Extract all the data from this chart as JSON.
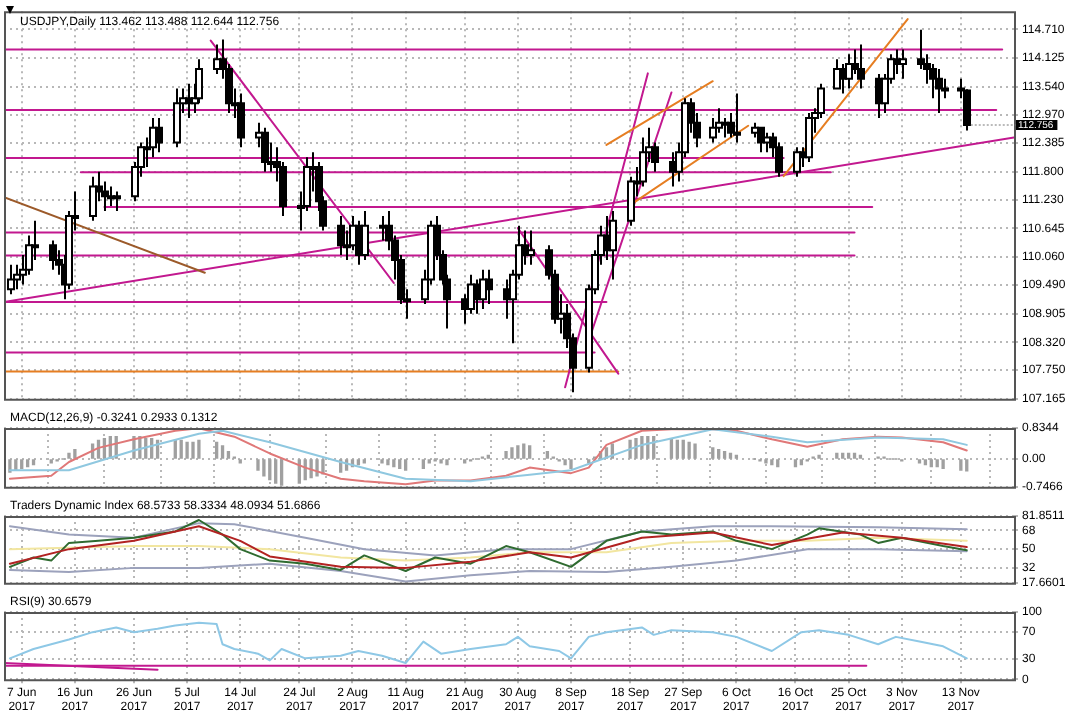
{
  "chart_data": [
    {
      "type": "candlestick",
      "title": "USDJPY,Daily 113.462 113.488 112.644 112.756",
      "x": [
        "2017-06-05",
        "2017-06-06",
        "2017-06-07",
        "2017-06-08",
        "2017-06-09",
        "2017-06-12",
        "2017-06-13",
        "2017-06-14",
        "2017-06-15",
        "2017-06-16",
        "2017-06-19",
        "2017-06-20",
        "2017-06-21",
        "2017-06-22",
        "2017-06-23",
        "2017-06-26",
        "2017-06-27",
        "2017-06-28",
        "2017-06-29",
        "2017-06-30",
        "2017-07-03",
        "2017-07-04",
        "2017-07-05",
        "2017-07-06",
        "2017-07-07",
        "2017-07-10",
        "2017-07-11",
        "2017-07-12",
        "2017-07-13",
        "2017-07-14",
        "2017-07-17",
        "2017-07-18",
        "2017-07-19",
        "2017-07-20",
        "2017-07-21",
        "2017-07-24",
        "2017-07-25",
        "2017-07-26",
        "2017-07-27",
        "2017-07-28",
        "2017-07-31",
        "2017-08-01",
        "2017-08-02",
        "2017-08-03",
        "2017-08-04",
        "2017-08-07",
        "2017-08-08",
        "2017-08-09",
        "2017-08-10",
        "2017-08-11",
        "2017-08-14",
        "2017-08-15",
        "2017-08-16",
        "2017-08-17",
        "2017-08-18",
        "2017-08-21",
        "2017-08-22",
        "2017-08-23",
        "2017-08-24",
        "2017-08-25",
        "2017-08-28",
        "2017-08-29",
        "2017-08-30",
        "2017-08-31",
        "2017-09-01",
        "2017-09-04",
        "2017-09-05",
        "2017-09-06",
        "2017-09-07",
        "2017-09-08",
        "2017-09-11",
        "2017-09-12",
        "2017-09-13",
        "2017-09-14",
        "2017-09-15",
        "2017-09-18",
        "2017-09-19",
        "2017-09-20",
        "2017-09-21",
        "2017-09-22",
        "2017-09-25",
        "2017-09-26",
        "2017-09-27",
        "2017-09-28",
        "2017-09-29",
        "2017-10-02",
        "2017-10-03",
        "2017-10-04",
        "2017-10-05",
        "2017-10-06",
        "2017-10-09",
        "2017-10-10",
        "2017-10-11",
        "2017-10-12",
        "2017-10-13",
        "2017-10-16",
        "2017-10-17",
        "2017-10-18",
        "2017-10-19",
        "2017-10-20",
        "2017-10-23",
        "2017-10-24",
        "2017-10-25",
        "2017-10-26",
        "2017-10-27",
        "2017-10-30",
        "2017-10-31",
        "2017-11-01",
        "2017-11-02",
        "2017-11-03",
        "2017-11-06",
        "2017-11-07",
        "2017-11-08",
        "2017-11-09",
        "2017-11-10",
        "2017-11-13",
        "2017-11-14"
      ],
      "ohlc": [
        [
          109.4,
          109.9,
          109.3,
          109.6
        ],
        [
          109.6,
          109.9,
          109.4,
          109.7
        ],
        [
          109.7,
          110.1,
          109.5,
          109.8
        ],
        [
          109.8,
          110.5,
          109.7,
          110.3
        ],
        [
          110.3,
          110.8,
          110.0,
          110.3
        ],
        [
          110.3,
          110.4,
          109.8,
          110.0
        ],
        [
          110.0,
          110.2,
          109.7,
          109.9
        ],
        [
          109.9,
          110.1,
          109.2,
          109.5
        ],
        [
          109.5,
          111.0,
          109.4,
          110.9
        ],
        [
          110.9,
          111.4,
          110.6,
          110.9
        ],
        [
          110.9,
          111.7,
          110.8,
          111.5
        ],
        [
          111.5,
          111.8,
          111.2,
          111.4
        ],
        [
          111.4,
          111.6,
          111.0,
          111.3
        ],
        [
          111.3,
          111.5,
          111.1,
          111.3
        ],
        [
          111.3,
          111.4,
          111.0,
          111.3
        ],
        [
          111.3,
          112.0,
          111.2,
          111.9
        ],
        [
          111.9,
          112.4,
          111.7,
          112.3
        ],
        [
          112.3,
          112.5,
          111.9,
          112.3
        ],
        [
          112.3,
          112.9,
          112.1,
          112.7
        ],
        [
          112.7,
          112.9,
          112.2,
          112.4
        ],
        [
          112.4,
          113.5,
          112.3,
          113.2
        ],
        [
          113.2,
          113.5,
          113.0,
          113.3
        ],
        [
          113.3,
          113.6,
          112.9,
          113.2
        ],
        [
          113.2,
          113.6,
          113.0,
          113.3
        ],
        [
          113.3,
          114.1,
          113.2,
          113.9
        ],
        [
          113.9,
          114.4,
          113.8,
          114.1
        ],
        [
          114.1,
          114.5,
          113.7,
          113.9
        ],
        [
          113.9,
          114.0,
          113.0,
          113.2
        ],
        [
          113.2,
          113.5,
          112.9,
          113.2
        ],
        [
          113.2,
          113.4,
          112.3,
          112.5
        ],
        [
          112.5,
          112.8,
          112.3,
          112.6
        ],
        [
          112.6,
          112.7,
          111.8,
          112.0
        ],
        [
          112.0,
          112.4,
          111.8,
          112.0
        ],
        [
          112.0,
          112.3,
          111.6,
          111.9
        ],
        [
          111.9,
          112.0,
          110.9,
          111.1
        ],
        [
          111.1,
          111.4,
          110.6,
          111.1
        ],
        [
          111.1,
          112.1,
          111.0,
          111.9
        ],
        [
          111.9,
          112.2,
          111.4,
          111.9
        ],
        [
          111.9,
          112.0,
          111.0,
          111.2
        ],
        [
          111.2,
          111.3,
          110.6,
          110.7
        ],
        [
          110.7,
          110.9,
          110.1,
          110.3
        ],
        [
          110.3,
          110.6,
          110.0,
          110.3
        ],
        [
          110.3,
          110.9,
          110.2,
          110.7
        ],
        [
          110.7,
          110.8,
          109.9,
          110.1
        ],
        [
          110.1,
          111.0,
          110.0,
          110.7
        ],
        [
          110.7,
          110.9,
          110.4,
          110.7
        ],
        [
          110.7,
          111.0,
          110.2,
          110.4
        ],
        [
          110.4,
          110.5,
          109.6,
          110.0
        ],
        [
          110.0,
          110.1,
          109.1,
          109.2
        ],
        [
          109.2,
          109.4,
          108.8,
          109.2
        ],
        [
          109.2,
          109.8,
          109.1,
          109.6
        ],
        [
          109.6,
          110.8,
          109.5,
          110.7
        ],
        [
          110.7,
          110.9,
          110.0,
          110.1
        ],
        [
          110.1,
          110.2,
          109.5,
          109.6
        ],
        [
          109.6,
          109.7,
          108.6,
          109.2
        ],
        [
          109.2,
          109.3,
          108.7,
          109.0
        ],
        [
          109.0,
          109.7,
          108.9,
          109.5
        ],
        [
          109.5,
          109.6,
          108.9,
          109.2
        ],
        [
          109.2,
          109.8,
          109.0,
          109.6
        ],
        [
          109.6,
          109.8,
          109.1,
          109.4
        ],
        [
          109.4,
          109.6,
          108.8,
          109.2
        ],
        [
          109.2,
          109.8,
          108.3,
          109.7
        ],
        [
          109.7,
          110.7,
          109.6,
          110.3
        ],
        [
          110.3,
          110.6,
          109.9,
          110.1
        ],
        [
          110.1,
          110.6,
          109.9,
          110.2
        ],
        [
          110.2,
          110.3,
          109.6,
          109.7
        ],
        [
          109.7,
          109.8,
          108.7,
          108.8
        ],
        [
          108.8,
          109.3,
          108.5,
          108.9
        ],
        [
          108.9,
          109.1,
          108.2,
          108.4
        ],
        [
          108.4,
          108.5,
          107.3,
          107.8
        ],
        [
          107.8,
          109.5,
          107.7,
          109.4
        ],
        [
          109.4,
          110.2,
          109.3,
          110.1
        ],
        [
          110.1,
          110.7,
          109.9,
          110.5
        ],
        [
          110.5,
          110.9,
          110.0,
          110.2
        ],
        [
          110.2,
          111.0,
          109.6,
          110.8
        ],
        [
          110.8,
          111.7,
          110.7,
          111.6
        ],
        [
          111.6,
          111.9,
          111.3,
          111.6
        ],
        [
          111.6,
          112.5,
          111.5,
          112.2
        ],
        [
          112.2,
          112.7,
          112.0,
          112.3
        ],
        [
          112.3,
          112.4,
          111.8,
          112.0
        ],
        [
          112.0,
          112.2,
          111.5,
          111.8
        ],
        [
          111.8,
          112.4,
          111.6,
          112.2
        ],
        [
          112.2,
          113.3,
          112.1,
          113.2
        ],
        [
          113.2,
          113.3,
          112.6,
          112.8
        ],
        [
          112.8,
          113.0,
          112.3,
          112.5
        ],
        [
          112.5,
          112.9,
          112.4,
          112.7
        ],
        [
          112.7,
          113.1,
          112.6,
          112.8
        ],
        [
          112.8,
          112.9,
          112.5,
          112.8
        ],
        [
          112.8,
          113.0,
          112.5,
          112.6
        ],
        [
          112.6,
          113.4,
          112.4,
          112.6
        ],
        [
          112.6,
          112.8,
          112.5,
          112.7
        ],
        [
          112.7,
          112.7,
          112.2,
          112.4
        ],
        [
          112.4,
          112.6,
          112.2,
          112.5
        ],
        [
          112.5,
          112.6,
          112.1,
          112.3
        ],
        [
          112.3,
          112.4,
          111.7,
          111.8
        ],
        [
          111.8,
          112.3,
          111.7,
          112.2
        ],
        [
          112.2,
          112.3,
          111.9,
          112.1
        ],
        [
          112.1,
          113.0,
          112.0,
          112.9
        ],
        [
          112.9,
          113.1,
          112.6,
          113.0
        ],
        [
          113.0,
          113.6,
          112.9,
          113.5
        ],
        [
          113.5,
          114.1,
          113.5,
          113.9
        ],
        [
          113.9,
          114.0,
          113.4,
          113.7
        ],
        [
          113.7,
          114.2,
          113.5,
          114.0
        ],
        [
          114.0,
          114.3,
          113.8,
          113.9
        ],
        [
          113.9,
          114.4,
          113.5,
          113.7
        ],
        [
          113.7,
          113.8,
          112.9,
          113.2
        ],
        [
          113.2,
          113.8,
          113.0,
          113.7
        ],
        [
          113.7,
          114.2,
          113.6,
          114.1
        ],
        [
          114.1,
          114.3,
          113.8,
          114.0
        ],
        [
          114.0,
          114.3,
          113.7,
          114.1
        ],
        [
          114.1,
          114.7,
          113.9,
          114.0
        ],
        [
          114.0,
          114.2,
          113.6,
          113.9
        ],
        [
          113.9,
          114.0,
          113.3,
          113.7
        ],
        [
          113.7,
          113.9,
          113.0,
          113.5
        ],
        [
          113.5,
          113.7,
          113.3,
          113.5
        ],
        [
          113.5,
          113.7,
          113.3,
          113.46
        ],
        [
          113.462,
          113.488,
          112.644,
          112.756
        ]
      ],
      "series": [
        {
          "type": "line",
          "color": "#c2188f",
          "x": [
            "2017-06-04",
            "2017-11-20"
          ],
          "values": [
            114.3,
            114.3
          ]
        },
        {
          "type": "line",
          "color": "#c2188f",
          "x": [
            "2017-06-04",
            "2017-11-19"
          ],
          "values": [
            113.06,
            113.06
          ]
        },
        {
          "type": "line",
          "color": "#c2188f",
          "x": [
            "2017-06-04",
            "2017-10-14"
          ],
          "values": [
            112.08,
            112.08
          ]
        },
        {
          "type": "line",
          "color": "#c2188f",
          "x": [
            "2017-06-17",
            "2017-10-22"
          ],
          "values": [
            111.79,
            111.79
          ]
        },
        {
          "type": "line",
          "color": "#c2188f",
          "x": [
            "2017-06-21",
            "2017-10-29"
          ],
          "values": [
            111.08,
            111.08
          ]
        },
        {
          "type": "line",
          "color": "#c2188f",
          "x": [
            "2017-06-04",
            "2017-10-26"
          ],
          "values": [
            110.56,
            110.56
          ]
        },
        {
          "type": "line",
          "color": "#c2188f",
          "x": [
            "2017-06-04",
            "2017-10-26"
          ],
          "values": [
            110.09,
            110.09
          ]
        },
        {
          "type": "line",
          "color": "#c2188f",
          "x": [
            "2017-06-04",
            "2017-09-14"
          ],
          "values": [
            109.14,
            109.14
          ]
        },
        {
          "type": "line",
          "color": "#c2188f",
          "x": [
            "2017-06-04",
            "2017-09-12"
          ],
          "values": [
            108.11,
            108.11
          ]
        },
        {
          "type": "line",
          "color": "#e67e22",
          "x": [
            "2017-06-04",
            "2017-09-16"
          ],
          "values": [
            107.72,
            107.72
          ]
        },
        {
          "type": "line",
          "color": "#c2188f",
          "x": [
            "2017-07-09",
            "2017-08-09"
          ],
          "values": [
            114.48,
            109.53
          ]
        },
        {
          "type": "line",
          "color": "#c2188f",
          "x": [
            "2017-08-30",
            "2017-09-16"
          ],
          "values": [
            110.65,
            107.68
          ]
        },
        {
          "type": "line",
          "color": "#c2188f",
          "x": [
            "2017-09-07",
            "2017-09-21"
          ],
          "values": [
            107.4,
            113.81
          ]
        },
        {
          "type": "line",
          "color": "#c2188f",
          "x": [
            "2017-09-11",
            "2017-09-25"
          ],
          "values": [
            108.35,
            113.42
          ]
        },
        {
          "type": "line",
          "color": "#c2188f",
          "x": [
            "2017-06-04",
            "2017-11-22"
          ],
          "values": [
            109.14,
            112.5
          ]
        },
        {
          "type": "line",
          "color": "#9c5a2a",
          "x": [
            "2017-06-04",
            "2017-07-08"
          ],
          "values": [
            111.28,
            109.74
          ]
        },
        {
          "type": "line",
          "color": "#e67e22",
          "x": [
            "2017-09-14",
            "2017-10-02"
          ],
          "values": [
            112.35,
            113.65
          ]
        },
        {
          "type": "line",
          "color": "#e67e22",
          "x": [
            "2017-09-18",
            "2017-10-08"
          ],
          "values": [
            111.12,
            112.74
          ]
        },
        {
          "type": "line",
          "color": "#e67e22",
          "x": [
            "2017-10-14",
            "2017-11-04"
          ],
          "values": [
            111.71,
            114.92
          ]
        }
      ],
      "annotations": [
        {
          "text": "112.756",
          "x": "2017-11-14",
          "y": 112.756
        }
      ],
      "xlim": [
        "2017-06-04",
        "2017-11-22"
      ],
      "xticks": [
        {
          "value": "2017-06-07",
          "label": null
        },
        {
          "value": "2017-06-16",
          "label": null
        },
        {
          "value": "2017-06-26",
          "label": null
        },
        {
          "value": "2017-07-05",
          "label": null
        },
        {
          "value": "2017-07-14",
          "label": null
        },
        {
          "value": "2017-07-24",
          "label": null
        },
        {
          "value": "2017-08-02",
          "label": null
        },
        {
          "value": "2017-08-11",
          "label": null
        },
        {
          "value": "2017-08-21",
          "label": null
        },
        {
          "value": "2017-08-30",
          "label": null
        },
        {
          "value": "2017-09-08",
          "label": null
        },
        {
          "value": "2017-09-18",
          "label": null
        },
        {
          "value": "2017-09-27",
          "label": null
        },
        {
          "value": "2017-10-06",
          "label": null
        },
        {
          "value": "2017-10-16",
          "label": null
        },
        {
          "value": "2017-10-25",
          "label": null
        },
        {
          "value": "2017-11-03",
          "label": null
        },
        {
          "value": "2017-11-13",
          "label": null
        }
      ],
      "ylim": [
        107.165,
        115.08
      ],
      "yticks": [
        107.165,
        {
          "value": 107.75,
          "label": "107.750"
        },
        {
          "value": 108.32,
          "label": "108.320"
        },
        108.905,
        {
          "value": 109.49,
          "label": "109.490"
        },
        {
          "value": 110.06,
          "label": "110.060"
        },
        110.645,
        {
          "value": 111.23,
          "label": "111.230"
        },
        {
          "value": 111.8,
          "label": "111.800"
        },
        112.385,
        {
          "value": 112.97,
          "label": "112.970"
        },
        {
          "value": 113.54,
          "label": "113.540"
        },
        114.125,
        {
          "value": 114.71,
          "label": "114.710"
        }
      ],
      "grid": true,
      "tick_labels": "y"
    },
    {
      "type": "bar",
      "title": "MACD(12,26,9) -0.3241 0.2933 0.1312",
      "color": "#a0a0a0",
      "x": [
        "2017-06-05",
        "2017-06-06",
        "2017-06-07",
        "2017-06-08",
        "2017-06-09",
        "2017-06-12",
        "2017-06-13",
        "2017-06-14",
        "2017-06-15",
        "2017-06-16",
        "2017-06-19",
        "2017-06-20",
        "2017-06-21",
        "2017-06-22",
        "2017-06-23",
        "2017-06-26",
        "2017-06-27",
        "2017-06-28",
        "2017-06-29",
        "2017-06-30",
        "2017-07-03",
        "2017-07-04",
        "2017-07-05",
        "2017-07-06",
        "2017-07-07",
        "2017-07-10",
        "2017-07-11",
        "2017-07-12",
        "2017-07-13",
        "2017-07-14",
        "2017-07-17",
        "2017-07-18",
        "2017-07-19",
        "2017-07-20",
        "2017-07-21",
        "2017-07-24",
        "2017-07-25",
        "2017-07-26",
        "2017-07-27",
        "2017-07-28",
        "2017-07-31",
        "2017-08-01",
        "2017-08-02",
        "2017-08-03",
        "2017-08-04",
        "2017-08-07",
        "2017-08-08",
        "2017-08-09",
        "2017-08-10",
        "2017-08-11",
        "2017-08-14",
        "2017-08-15",
        "2017-08-16",
        "2017-08-17",
        "2017-08-18",
        "2017-08-21",
        "2017-08-22",
        "2017-08-23",
        "2017-08-24",
        "2017-08-25",
        "2017-08-28",
        "2017-08-29",
        "2017-08-30",
        "2017-08-31",
        "2017-09-01",
        "2017-09-04",
        "2017-09-05",
        "2017-09-06",
        "2017-09-07",
        "2017-09-08",
        "2017-09-11",
        "2017-09-12",
        "2017-09-13",
        "2017-09-14",
        "2017-09-15",
        "2017-09-18",
        "2017-09-19",
        "2017-09-20",
        "2017-09-21",
        "2017-09-22",
        "2017-09-25",
        "2017-09-26",
        "2017-09-27",
        "2017-09-28",
        "2017-09-29",
        "2017-10-02",
        "2017-10-03",
        "2017-10-04",
        "2017-10-05",
        "2017-10-06",
        "2017-10-09",
        "2017-10-10",
        "2017-10-11",
        "2017-10-12",
        "2017-10-13",
        "2017-10-16",
        "2017-10-17",
        "2017-10-18",
        "2017-10-19",
        "2017-10-20",
        "2017-10-23",
        "2017-10-24",
        "2017-10-25",
        "2017-10-26",
        "2017-10-27",
        "2017-10-30",
        "2017-10-31",
        "2017-11-01",
        "2017-11-02",
        "2017-11-03",
        "2017-11-06",
        "2017-11-07",
        "2017-11-08",
        "2017-11-09",
        "2017-11-10",
        "2017-11-13",
        "2017-11-14"
      ],
      "values": [
        -0.35,
        -0.3,
        -0.25,
        -0.2,
        -0.15,
        -0.1,
        -0.05,
        0.0,
        0.15,
        0.25,
        0.4,
        0.5,
        0.55,
        0.6,
        0.6,
        0.6,
        0.6,
        0.55,
        0.55,
        0.5,
        0.5,
        0.5,
        0.45,
        0.45,
        0.5,
        0.45,
        0.35,
        0.2,
        0.05,
        -0.1,
        -0.3,
        -0.45,
        -0.55,
        -0.65,
        -0.7,
        -0.65,
        -0.55,
        -0.5,
        -0.45,
        -0.4,
        -0.35,
        -0.3,
        -0.2,
        -0.15,
        -0.1,
        -0.1,
        -0.15,
        -0.2,
        -0.25,
        -0.3,
        -0.25,
        -0.1,
        -0.05,
        -0.1,
        -0.15,
        -0.1,
        -0.05,
        0.0,
        0.05,
        0.1,
        0.2,
        0.3,
        0.35,
        0.4,
        0.35,
        0.2,
        0.05,
        -0.05,
        -0.15,
        -0.25,
        -0.1,
        0.05,
        0.2,
        0.3,
        0.4,
        0.5,
        0.55,
        0.6,
        0.6,
        0.6,
        0.55,
        0.5,
        0.5,
        0.45,
        0.4,
        0.3,
        0.25,
        0.2,
        0.15,
        0.1,
        0.0,
        -0.05,
        -0.1,
        -0.15,
        -0.2,
        -0.2,
        -0.15,
        -0.05,
        0.05,
        0.1,
        0.15,
        0.15,
        0.15,
        0.15,
        0.1,
        0.05,
        0.05,
        0.0,
        0.0,
        -0.05,
        -0.1,
        -0.15,
        -0.2,
        -0.2,
        -0.25,
        -0.3,
        -0.32
      ],
      "series": [
        {
          "type": "line",
          "color": "#e07878",
          "x": [
            "2017-06-05",
            "2017-06-12",
            "2017-06-15",
            "2017-06-20",
            "2017-06-26",
            "2017-07-03",
            "2017-07-07",
            "2017-07-13",
            "2017-07-19",
            "2017-07-25",
            "2017-07-31",
            "2017-08-04",
            "2017-08-11",
            "2017-08-16",
            "2017-08-22",
            "2017-08-28",
            "2017-09-01",
            "2017-09-08",
            "2017-09-11",
            "2017-09-14",
            "2017-09-20",
            "2017-09-25",
            "2017-10-02",
            "2017-10-06",
            "2017-10-12",
            "2017-10-18",
            "2017-10-24",
            "2017-10-30",
            "2017-11-03",
            "2017-11-10",
            "2017-11-14"
          ],
          "values": [
            -0.53,
            -0.45,
            -0.08,
            0.3,
            0.53,
            0.76,
            0.83,
            0.6,
            0.15,
            -0.23,
            -0.53,
            -0.6,
            -0.68,
            -0.58,
            -0.58,
            -0.45,
            -0.23,
            -0.38,
            -0.23,
            0.38,
            0.76,
            0.8,
            0.8,
            0.76,
            0.53,
            0.33,
            0.53,
            0.6,
            0.58,
            0.45,
            0.23
          ]
        },
        {
          "type": "line",
          "color": "#8fc8e0",
          "x": [
            "2017-06-05",
            "2017-06-15",
            "2017-06-26",
            "2017-07-07",
            "2017-07-11",
            "2017-07-19",
            "2017-07-31",
            "2017-08-11",
            "2017-08-22",
            "2017-09-01",
            "2017-09-08",
            "2017-09-20",
            "2017-10-02",
            "2017-10-12",
            "2017-10-18",
            "2017-10-30",
            "2017-11-10",
            "2017-11-14"
          ],
          "values": [
            -0.3,
            -0.3,
            0.23,
            0.68,
            0.76,
            0.45,
            -0.08,
            -0.53,
            -0.6,
            -0.42,
            -0.3,
            0.38,
            0.8,
            0.6,
            0.45,
            0.58,
            0.53,
            0.38
          ]
        }
      ],
      "xlim": [
        "2017-06-04",
        "2017-11-22"
      ],
      "xticks": [
        {
          "value": "2017-06-07",
          "label": null
        },
        {
          "value": "2017-06-16",
          "label": null
        },
        {
          "value": "2017-06-26",
          "label": null
        },
        {
          "value": "2017-07-05",
          "label": null
        },
        {
          "value": "2017-07-14",
          "label": null
        },
        {
          "value": "2017-07-24",
          "label": null
        },
        {
          "value": "2017-08-02",
          "label": null
        },
        {
          "value": "2017-08-11",
          "label": null
        },
        {
          "value": "2017-08-21",
          "label": null
        },
        {
          "value": "2017-08-30",
          "label": null
        },
        {
          "value": "2017-09-08",
          "label": null
        },
        {
          "value": "2017-09-18",
          "label": null
        },
        {
          "value": "2017-09-27",
          "label": null
        },
        {
          "value": "2017-10-06",
          "label": null
        },
        {
          "value": "2017-10-16",
          "label": null
        },
        {
          "value": "2017-10-25",
          "label": null
        },
        {
          "value": "2017-11-03",
          "label": null
        },
        {
          "value": "2017-11-13",
          "label": null
        }
      ],
      "ylim": [
        -0.7466,
        0.8344
      ],
      "yticks": [
        0.8344,
        {
          "value": 0,
          "label": "0.00"
        },
        -0.7466
      ],
      "grid": true,
      "tick_labels": "y"
    },
    {
      "type": "line",
      "title": "Traders Dynamic Index 68.5733 58.3334 48.0934 51.6866",
      "series": [
        {
          "type": "line",
          "color": "#f2e6a0",
          "x": [
            "2017-06-05",
            "2017-06-26",
            "2017-07-07",
            "2017-07-19",
            "2017-07-31",
            "2017-08-11",
            "2017-08-22",
            "2017-09-01",
            "2017-09-14",
            "2017-09-25",
            "2017-10-06",
            "2017-10-18",
            "2017-10-30",
            "2017-11-14"
          ],
          "values": [
            50,
            53,
            53,
            50,
            42,
            39,
            42,
            47,
            47,
            56,
            58,
            58,
            61,
            58
          ]
        },
        {
          "type": "line",
          "color": "#9ca2bc",
          "x": [
            "2017-06-05",
            "2017-06-15",
            "2017-06-26",
            "2017-07-07",
            "2017-07-13",
            "2017-07-25",
            "2017-08-04",
            "2017-08-16",
            "2017-08-28",
            "2017-09-08",
            "2017-09-20",
            "2017-10-02",
            "2017-10-12",
            "2017-10-30",
            "2017-11-14"
          ],
          "values": [
            72,
            64,
            61,
            75,
            74,
            61,
            50,
            44,
            50,
            50,
            67,
            72,
            72,
            71,
            69
          ]
        },
        {
          "type": "line",
          "color": "#9ca2bc",
          "x": [
            "2017-06-05",
            "2017-06-15",
            "2017-06-26",
            "2017-07-07",
            "2017-07-19",
            "2017-07-31",
            "2017-08-11",
            "2017-08-22",
            "2017-09-01",
            "2017-09-14",
            "2017-09-25",
            "2017-10-06",
            "2017-10-18",
            "2017-10-30",
            "2017-11-14"
          ],
          "values": [
            30,
            28,
            32,
            32,
            36,
            29,
            19,
            25,
            29,
            28,
            33,
            39,
            50,
            50,
            48
          ]
        },
        {
          "type": "line",
          "color": "#2f6b30",
          "x": [
            "2017-06-05",
            "2017-06-09",
            "2017-06-12",
            "2017-06-15",
            "2017-06-20",
            "2017-06-26",
            "2017-07-03",
            "2017-07-07",
            "2017-07-11",
            "2017-07-14",
            "2017-07-19",
            "2017-07-25",
            "2017-07-31",
            "2017-08-04",
            "2017-08-11",
            "2017-08-16",
            "2017-08-22",
            "2017-08-28",
            "2017-09-01",
            "2017-09-08",
            "2017-09-14",
            "2017-09-20",
            "2017-09-25",
            "2017-10-02",
            "2017-10-06",
            "2017-10-12",
            "2017-10-18",
            "2017-10-20",
            "2017-10-27",
            "2017-10-30",
            "2017-11-03",
            "2017-11-10",
            "2017-11-14"
          ],
          "values": [
            33,
            42,
            39,
            56,
            58,
            61,
            67,
            78,
            64,
            50,
            39,
            36,
            30,
            44,
            29,
            42,
            36,
            53,
            47,
            33,
            58,
            67,
            64,
            67,
            58,
            50,
            64,
            70,
            64,
            56,
            61,
            53,
            49
          ]
        },
        {
          "type": "line",
          "color": "#b22222",
          "x": [
            "2017-06-05",
            "2017-06-15",
            "2017-06-26",
            "2017-07-07",
            "2017-07-14",
            "2017-07-19",
            "2017-07-31",
            "2017-08-11",
            "2017-08-22",
            "2017-09-01",
            "2017-09-08",
            "2017-09-20",
            "2017-10-02",
            "2017-10-12",
            "2017-10-24",
            "2017-11-03",
            "2017-11-14"
          ],
          "values": [
            36,
            50,
            58,
            72,
            58,
            43,
            33,
            32,
            38,
            47,
            42,
            61,
            66,
            54,
            66,
            61,
            52
          ]
        }
      ],
      "xlim": [
        "2017-06-04",
        "2017-11-22"
      ],
      "xticks": [
        {
          "value": "2017-06-07",
          "label": null
        },
        {
          "value": "2017-06-16",
          "label": null
        },
        {
          "value": "2017-06-26",
          "label": null
        },
        {
          "value": "2017-07-05",
          "label": null
        },
        {
          "value": "2017-07-14",
          "label": null
        },
        {
          "value": "2017-07-24",
          "label": null
        },
        {
          "value": "2017-08-02",
          "label": null
        },
        {
          "value": "2017-08-11",
          "label": null
        },
        {
          "value": "2017-08-21",
          "label": null
        },
        {
          "value": "2017-08-30",
          "label": null
        },
        {
          "value": "2017-09-08",
          "label": null
        },
        {
          "value": "2017-09-18",
          "label": null
        },
        {
          "value": "2017-09-27",
          "label": null
        },
        {
          "value": "2017-10-06",
          "label": null
        },
        {
          "value": "2017-10-16",
          "label": null
        },
        {
          "value": "2017-10-25",
          "label": null
        },
        {
          "value": "2017-11-03",
          "label": null
        },
        {
          "value": "2017-11-13",
          "label": null
        }
      ],
      "ylim": [
        17.6601,
        81.8511
      ],
      "yticks": [
        81.8511,
        68,
        50,
        32,
        17.6601
      ],
      "grid": true,
      "tick_labels": "y"
    },
    {
      "type": "line",
      "title": "RSI(9) 30.6579",
      "series": [
        {
          "type": "line",
          "color": "#8ec8e6",
          "x": [
            "2017-06-05",
            "2017-06-09",
            "2017-06-12",
            "2017-06-15",
            "2017-06-19",
            "2017-06-23",
            "2017-06-26",
            "2017-06-30",
            "2017-07-03",
            "2017-07-07",
            "2017-07-10",
            "2017-07-11",
            "2017-07-13",
            "2017-07-17",
            "2017-07-19",
            "2017-07-21",
            "2017-07-25",
            "2017-07-31",
            "2017-08-03",
            "2017-08-07",
            "2017-08-11",
            "2017-08-14",
            "2017-08-17",
            "2017-08-22",
            "2017-08-28",
            "2017-08-30",
            "2017-09-01",
            "2017-09-06",
            "2017-09-08",
            "2017-09-11",
            "2017-09-14",
            "2017-09-20",
            "2017-09-22",
            "2017-09-25",
            "2017-10-02",
            "2017-10-06",
            "2017-10-12",
            "2017-10-17",
            "2017-10-20",
            "2017-10-25",
            "2017-10-30",
            "2017-11-02",
            "2017-11-06",
            "2017-11-10",
            "2017-11-14"
          ],
          "values": [
            31,
            45,
            52,
            59,
            70,
            77,
            70,
            75,
            80,
            84,
            82,
            52,
            45,
            38,
            28,
            45,
            31,
            35,
            42,
            35,
            24,
            56,
            38,
            45,
            52,
            63,
            49,
            42,
            31,
            63,
            70,
            77,
            66,
            73,
            70,
            63,
            42,
            70,
            73,
            66,
            52,
            63,
            56,
            49,
            31
          ]
        },
        {
          "type": "line",
          "color": "#c2188f",
          "x": [
            "2017-06-04",
            "2017-06-30"
          ],
          "values": [
            24,
            14
          ]
        },
        {
          "type": "line",
          "color": "#c2188f",
          "x": [
            "2017-06-04",
            "2017-10-28"
          ],
          "values": [
            20,
            20
          ]
        }
      ],
      "xlim": [
        "2017-06-04",
        "2017-11-22"
      ],
      "xticks": [
        {
          "value": "2017-06-07",
          "label": "7 Jun 2017"
        },
        {
          "value": "2017-06-16",
          "label": "16 Jun 2017"
        },
        {
          "value": "2017-06-26",
          "label": "26 Jun 2017"
        },
        {
          "value": "2017-07-05",
          "label": "5 Jul 2017"
        },
        {
          "value": "2017-07-14",
          "label": "14 Jul 2017"
        },
        {
          "value": "2017-07-24",
          "label": "24 Jul 2017"
        },
        {
          "value": "2017-08-02",
          "label": "2 Aug 2017"
        },
        {
          "value": "2017-08-11",
          "label": "11 Aug 2017"
        },
        {
          "value": "2017-08-21",
          "label": "21 Aug 2017"
        },
        {
          "value": "2017-08-30",
          "label": "30 Aug 2017"
        },
        {
          "value": "2017-09-08",
          "label": "8 Sep 2017"
        },
        {
          "value": "2017-09-18",
          "label": "18 Sep 2017"
        },
        {
          "value": "2017-09-27",
          "label": "27 Sep 2017"
        },
        {
          "value": "2017-10-06",
          "label": "6 Oct 2017"
        },
        {
          "value": "2017-10-16",
          "label": "16 Oct 2017"
        },
        {
          "value": "2017-10-25",
          "label": "25 Oct 2017"
        },
        {
          "value": "2017-11-03",
          "label": "3 Nov 2017"
        },
        {
          "value": "2017-11-13",
          "label": "13 Nov 2017"
        }
      ],
      "ylim": [
        0,
        100
      ],
      "yticks": [
        100,
        70,
        30,
        0
      ],
      "grid": true
    }
  ]
}
